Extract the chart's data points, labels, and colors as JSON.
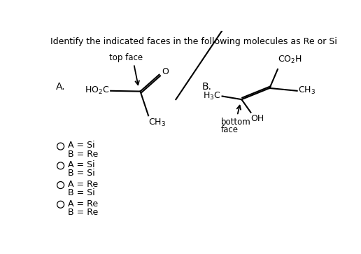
{
  "title": "Identify the indicated faces in the following molecules as Re or Si",
  "title_fontsize": 9.0,
  "bg_color": "#ffffff",
  "text_color": "#000000",
  "choices": [
    {
      "line1": "A = Si",
      "line2": "B = Re"
    },
    {
      "line1": "A = Si",
      "line2": "B = Si"
    },
    {
      "line1": "A = Re",
      "line2": "B = Si"
    },
    {
      "line1": "A = Re",
      "line2": "B = Re"
    }
  ],
  "choice_fontsize": 9,
  "mol_fontsize": 9,
  "label_fontsize": 10
}
